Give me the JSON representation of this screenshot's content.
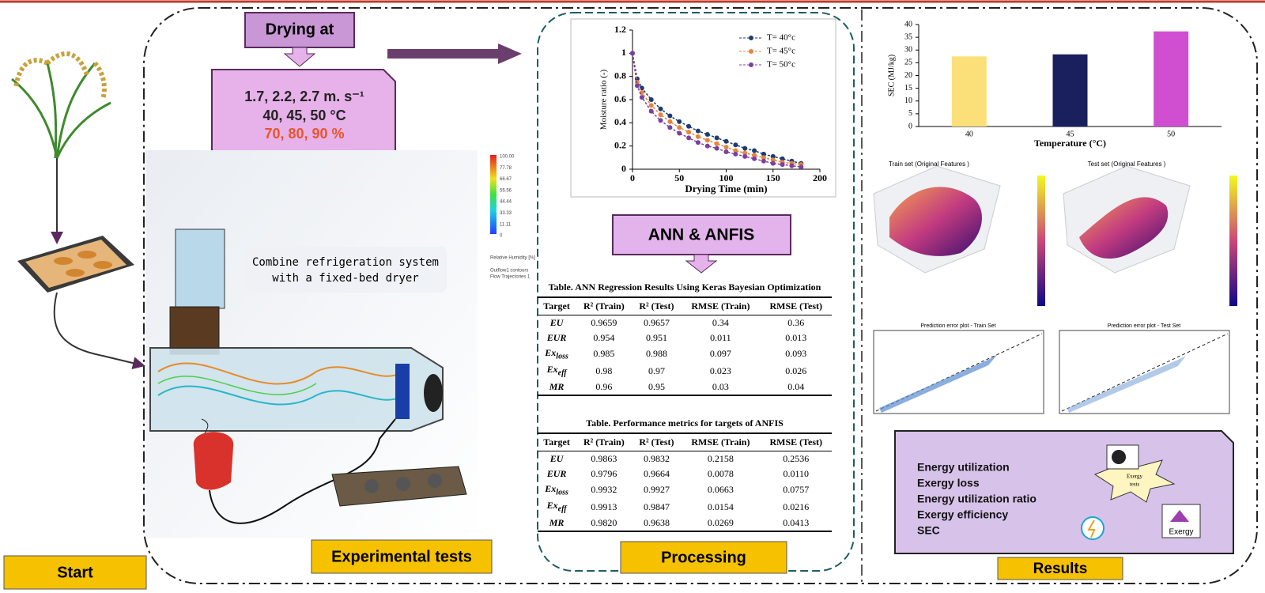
{
  "drying_label": "Drying at",
  "conditions": [
    "1.7, 2.2, 2.7 m. s⁻¹",
    "40, 45, 50 °C",
    "70, 80, 90 %"
  ],
  "cfd_caption": [
    "Combine refrigeration system",
    "with a fixed-bed dryer"
  ],
  "colorbar": {
    "title": "Relative Humidity [%]",
    "labels": [
      "100.00",
      "77.78",
      "66.67",
      "55.56",
      "44.44",
      "33.33",
      "11.11",
      "0"
    ],
    "note": [
      "Outflow1 contours",
      "Flow Trajectories 1"
    ]
  },
  "stages": {
    "start": "Start",
    "experimental": "Experimental tests",
    "processing": "Processing",
    "results": "Results"
  },
  "ann_anfis": "ANN & ANFIS",
  "chart_data": [
    {
      "type": "line",
      "xlabel": "Drying Time (min)",
      "ylabel": "Moisture ratio (-)",
      "x": [
        0,
        5,
        10,
        20,
        30,
        40,
        50,
        60,
        70,
        80,
        90,
        100,
        110,
        120,
        130,
        140,
        150,
        160,
        170,
        180
      ],
      "xlim": [
        0,
        200
      ],
      "ylim": [
        0,
        1.2
      ],
      "xticks": [
        0,
        50,
        100,
        150,
        200
      ],
      "yticks": [
        0,
        0.2,
        0.4,
        0.6,
        0.8,
        1,
        1.2
      ],
      "series": [
        {
          "name": "T= 40°c",
          "color": "#1f3b6e",
          "values": [
            1,
            0.78,
            0.7,
            0.6,
            0.52,
            0.46,
            0.41,
            0.37,
            0.33,
            0.3,
            0.27,
            0.24,
            0.21,
            0.18,
            0.16,
            0.13,
            0.11,
            0.09,
            0.07,
            0.05
          ]
        },
        {
          "name": "T= 45°c",
          "color": "#e8843a",
          "values": [
            1,
            0.75,
            0.66,
            0.55,
            0.47,
            0.41,
            0.36,
            0.32,
            0.28,
            0.25,
            0.22,
            0.19,
            0.16,
            0.14,
            0.12,
            0.1,
            0.08,
            0.06,
            0.05,
            0.04
          ]
        },
        {
          "name": "T= 50°c",
          "color": "#7b3fa0",
          "values": [
            1,
            0.72,
            0.62,
            0.5,
            0.42,
            0.36,
            0.31,
            0.27,
            0.23,
            0.2,
            0.18,
            0.15,
            0.13,
            0.11,
            0.09,
            0.07,
            0.05,
            0.04,
            0.03,
            0.02
          ]
        }
      ]
    },
    {
      "type": "bar",
      "xlabel": "Temperature (°C)",
      "ylabel": "SEC (MJ/kg)",
      "categories": [
        "40",
        "45",
        "50"
      ],
      "values": [
        27.5,
        28.3,
        37.3
      ],
      "colors": [
        "#fbe07a",
        "#1a1f5e",
        "#d04fd0"
      ],
      "ylim": [
        0,
        40
      ],
      "yticks": [
        0,
        5,
        10,
        15,
        20,
        25,
        30,
        35,
        40
      ]
    }
  ],
  "tables": [
    {
      "title": "Table. ANN Regression Results Using Keras Bayesian Optimization",
      "header": [
        "Target",
        "R² (Train)",
        "R² (Test)",
        "RMSE (Train)",
        "RMSE (Test)"
      ],
      "rows": [
        [
          [
            "EU"
          ],
          "0.9659",
          "0.9657",
          "0.34",
          "0.36"
        ],
        [
          [
            "EUR"
          ],
          "0.954",
          "0.951",
          "0.011",
          "0.013"
        ],
        [
          [
            "Ex",
            "loss"
          ],
          "0.985",
          "0.988",
          "0.097",
          "0.093"
        ],
        [
          [
            "Ex",
            "eff"
          ],
          "0.98",
          "0.97",
          "0.023",
          "0.026"
        ],
        [
          [
            "MR"
          ],
          "0.96",
          "0.95",
          "0.03",
          "0.04"
        ]
      ]
    },
    {
      "title": "Table. Performance metrics for targets of ANFIS",
      "header": [
        "Target",
        "R² (Train)",
        "R² (Test)",
        "RMSE (Train)",
        "RMSE (Test)"
      ],
      "rows": [
        [
          [
            "EU"
          ],
          "0.9863",
          "0.9832",
          "0.2158",
          "0.2536"
        ],
        [
          [
            "EUR"
          ],
          "0.9796",
          "0.9664",
          "0.0078",
          "0.0110"
        ],
        [
          [
            "Ex",
            "loss"
          ],
          "0.9932",
          "0.9927",
          "0.0663",
          "0.0757"
        ],
        [
          [
            "Ex",
            "eff"
          ],
          "0.9913",
          "0.9847",
          "0.0154",
          "0.0216"
        ],
        [
          [
            "MR"
          ],
          "0.9820",
          "0.9638",
          "0.0269",
          "0.0413"
        ]
      ]
    }
  ],
  "plot_titles": [
    "Train set (Original Features )",
    "Test set (Original Features )",
    "Prediction error plot - Train Set",
    "Prediction error plot - Test Set"
  ],
  "results": [
    "Energy utilization",
    "Exergy loss",
    "Energy utilization ratio",
    "Exergy efficiency",
    "SEC"
  ],
  "exergy_burst": [
    "Exergy",
    "tests"
  ],
  "exergy_icon": "Exergy"
}
